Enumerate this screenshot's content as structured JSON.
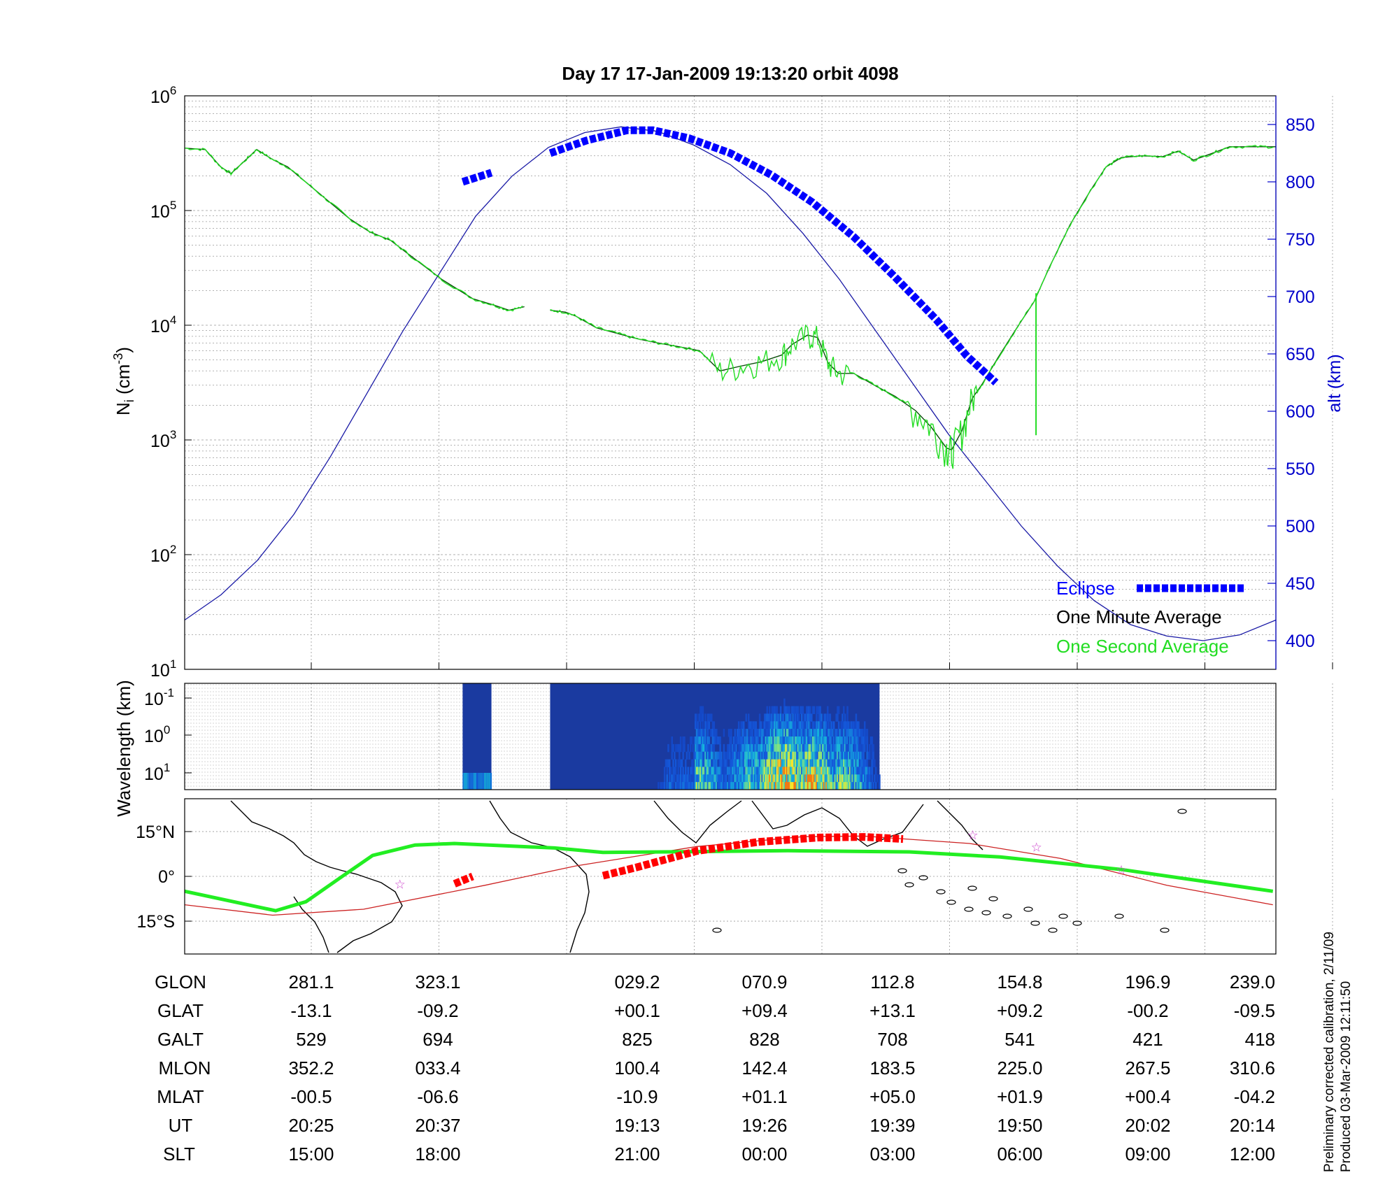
{
  "title": "Day 17  17-Jan-2009 19:13:20   orbit 4098",
  "colors": {
    "altitude": "#1a1aa6",
    "eclipse": "#0000ff",
    "minute": "#0a4d0a",
    "second": "#22dd22",
    "ground_eclipse": "#ff0000",
    "ground_track": "#cc2222",
    "ground_line": "#22ee22",
    "stars": "#cc44cc"
  },
  "chart_data": [
    {
      "type": "line",
      "title": "Day 17  17-Jan-2009 19:13:20   orbit 4098",
      "ylabel": "N_i (cm^-3)",
      "yscale": "log",
      "ylim": [
        10,
        1000000
      ],
      "yticks": [
        {
          "base": "10",
          "exp": "6"
        },
        {
          "base": "10",
          "exp": "5"
        },
        {
          "base": "10",
          "exp": "4"
        },
        {
          "base": "10",
          "exp": "3"
        },
        {
          "base": "10",
          "exp": "2"
        },
        {
          "base": "10",
          "exp": "1"
        }
      ],
      "y2label": "alt (km)",
      "y2lim": [
        375,
        875
      ],
      "y2ticks": [
        "850",
        "800",
        "750",
        "700",
        "650",
        "600",
        "550",
        "500",
        "450",
        "400"
      ],
      "x_index_range": [
        0,
        8.5
      ],
      "grid": true,
      "legend": {
        "position": "bottom-right",
        "entries": [
          "Eclipse",
          "One Minute Average",
          "One Second Average"
        ]
      },
      "series": [
        {
          "name": "One Minute Average",
          "segments": [
            [
              [
                0,
                350000
              ],
              [
                0.2,
                340000
              ],
              [
                0.35,
                240000
              ],
              [
                0.45,
                210000
              ],
              [
                0.6,
                280000
              ],
              [
                0.7,
                340000
              ],
              [
                0.85,
                280000
              ],
              [
                1.0,
                240000
              ],
              [
                1.2,
                170000
              ],
              [
                1.4,
                120000
              ],
              [
                1.6,
                85000
              ],
              [
                1.8,
                65000
              ],
              [
                2.0,
                55000
              ],
              [
                2.2,
                40000
              ],
              [
                2.5,
                25000
              ],
              [
                2.8,
                17000
              ],
              [
                3.0,
                15000
              ],
              [
                3.15,
                13500
              ],
              [
                3.3,
                14500
              ]
            ],
            [
              [
                3.55,
                13500
              ],
              [
                3.7,
                13000
              ],
              [
                3.8,
                12000
              ],
              [
                4.0,
                9500
              ],
              [
                4.2,
                8500
              ],
              [
                4.4,
                7600
              ],
              [
                4.6,
                7000
              ],
              [
                4.8,
                6500
              ],
              [
                5.0,
                6000
              ],
              [
                5.2,
                4000
              ],
              [
                5.4,
                4400
              ],
              [
                5.6,
                4800
              ],
              [
                5.8,
                5500
              ],
              [
                5.9,
                6800
              ],
              [
                6.05,
                8200
              ],
              [
                6.15,
                7800
              ],
              [
                6.25,
                4700
              ],
              [
                6.35,
                3800
              ],
              [
                6.5,
                3800
              ],
              [
                6.7,
                3000
              ],
              [
                6.9,
                2400
              ],
              [
                7.1,
                1800
              ],
              [
                7.25,
                1300
              ],
              [
                7.4,
                850
              ],
              [
                7.45,
                820
              ],
              [
                7.55,
                1200
              ],
              [
                7.65,
                2300
              ],
              [
                7.75,
                3100
              ],
              [
                7.9,
                5200
              ],
              [
                8.1,
                10000
              ],
              [
                8.25,
                16000
              ],
              [
                8.4,
                32000
              ],
              [
                8.6,
                75000
              ],
              [
                8.8,
                150000
              ],
              [
                8.95,
                240000
              ],
              [
                9.1,
                290000
              ],
              [
                9.3,
                300000
              ],
              [
                9.5,
                295000
              ],
              [
                9.65,
                330000
              ],
              [
                9.8,
                275000
              ],
              [
                10.0,
                320000
              ],
              [
                10.15,
                360000
              ],
              [
                10.4,
                360000
              ],
              [
                10.6,
                360000
              ]
            ]
          ]
        },
        {
          "name": "One Second Average",
          "spikes": [
            [
              8.27,
              1100,
              19000
            ]
          ]
        },
        {
          "name": "altitude",
          "axis": "y2",
          "values_km": [
            [
              0,
              418
            ],
            [
              0.5,
              440
            ],
            [
              1.0,
              470
            ],
            [
              1.5,
              510
            ],
            [
              2.0,
              560
            ],
            [
              2.5,
              615
            ],
            [
              3.0,
              670
            ],
            [
              3.55,
              725
            ],
            [
              4.0,
              770
            ],
            [
              4.5,
              805
            ],
            [
              5.0,
              830
            ],
            [
              5.5,
              843
            ],
            [
              6.0,
              848
            ],
            [
              6.5,
              844
            ],
            [
              7.0,
              832
            ],
            [
              7.5,
              815
            ],
            [
              8.0,
              790
            ],
            [
              8.5,
              755
            ],
            [
              9.0,
              715
            ],
            [
              9.5,
              670
            ],
            [
              10.0,
              625
            ],
            [
              10.5,
              580
            ],
            [
              11.0,
              540
            ],
            [
              11.5,
              500
            ],
            [
              12.0,
              465
            ],
            [
              12.5,
              435
            ],
            [
              13.0,
              414
            ],
            [
              13.5,
              404
            ],
            [
              14.0,
              400
            ],
            [
              14.5,
              405
            ],
            [
              15.0,
              418
            ]
          ]
        },
        {
          "name": "Eclipse",
          "axis": "y2",
          "segments": [
            [
              [
                2.7,
                800
              ],
              [
                2.98,
                808
              ]
            ],
            [
              [
                3.55,
                825
              ],
              [
                3.9,
                836
              ],
              [
                4.3,
                845
              ],
              [
                4.55,
                845
              ],
              [
                4.9,
                838
              ],
              [
                5.3,
                825
              ],
              [
                5.7,
                806
              ],
              [
                6.1,
                782
              ],
              [
                6.5,
                752
              ],
              [
                6.9,
                717
              ],
              [
                7.3,
                680
              ],
              [
                7.6,
                648
              ],
              [
                7.88,
                625
              ]
            ]
          ]
        }
      ]
    },
    {
      "type": "heatmap",
      "ylabel": "Wavelength (km)",
      "yscale": "log",
      "yticks": [
        {
          "base": "10",
          "exp": "-1"
        },
        {
          "base": "10",
          "exp": "0"
        },
        {
          "base": "10",
          "exp": "1"
        }
      ],
      "data_blocks_x_index": [
        [
          2.7,
          2.98
        ],
        [
          3.55,
          6.75
        ]
      ],
      "activity": [
        {
          "x": 4.97,
          "peak": 0.6
        },
        {
          "x": 5.5,
          "peak": 0.55
        },
        {
          "x": 5.8,
          "peak": 0.9
        },
        {
          "x": 6.1,
          "peak": 0.8
        },
        {
          "x": 6.4,
          "peak": 0.6
        }
      ]
    },
    {
      "type": "map",
      "yticks": [
        "15°N",
        "0°",
        "15°S"
      ],
      "ylim_deg": [
        -26,
        26
      ],
      "xlim_lon": [
        251,
        250
      ],
      "ground_track_green": [
        [
          251,
          -5
        ],
        [
          281,
          -11.5
        ],
        [
          291,
          -8.5
        ],
        [
          303,
          0
        ],
        [
          313,
          7
        ],
        [
          327,
          10.5
        ],
        [
          340,
          11
        ],
        [
          13,
          9.5
        ],
        [
          29,
          8
        ],
        [
          60,
          8.3
        ],
        [
          90,
          8.6
        ],
        [
          130,
          8.2
        ],
        [
          160,
          6.5
        ],
        [
          200,
          2.3
        ],
        [
          250,
          -5
        ]
      ],
      "ground_track_red": [
        [
          251,
          -9.5
        ],
        [
          280,
          -13
        ],
        [
          310,
          -11
        ],
        [
          350,
          -3
        ],
        [
          20,
          3.5
        ],
        [
          60,
          10
        ],
        [
          95,
          13.3
        ],
        [
          115,
          13.5
        ],
        [
          150,
          11
        ],
        [
          180,
          6
        ],
        [
          215,
          -3
        ],
        [
          250,
          -9.5
        ]
      ],
      "eclipse_segments": [
        [
          [
            340,
            -2.5
          ],
          [
            346,
            0
          ]
        ],
        [
          [
            29,
            0.2
          ],
          [
            40,
            3
          ],
          [
            60,
            8.5
          ],
          [
            80,
            11.5
          ],
          [
            100,
            13
          ],
          [
            115,
            13.2
          ],
          [
            128,
            12.5
          ]
        ]
      ],
      "stars": [
        [
          322,
          -2.5
        ],
        [
          151,
          14
        ],
        [
          172,
          10
        ],
        [
          200,
          2.3
        ]
      ]
    }
  ],
  "x_positions": [
    "281.1",
    "323.1",
    "",
    "029.2",
    "070.9",
    "112.8",
    "154.8",
    "196.9",
    "239.0"
  ],
  "table": {
    "rows": [
      {
        "label": "GLON",
        "values": [
          "281.1",
          "323.1",
          "029.2",
          "070.9",
          "112.8",
          "154.8",
          "196.9",
          "239.0"
        ]
      },
      {
        "label": "GLAT",
        "values": [
          "-13.1",
          "-09.2",
          "+00.1",
          "+09.4",
          "+13.1",
          "+09.2",
          "-00.2",
          "-09.5"
        ]
      },
      {
        "label": "GALT",
        "values": [
          "529",
          "694",
          "825",
          "828",
          "708",
          "541",
          "421",
          "418"
        ]
      },
      {
        "label": "MLON",
        "values": [
          "352.2",
          "033.4",
          "100.4",
          "142.4",
          "183.5",
          "225.0",
          "267.5",
          "310.6"
        ]
      },
      {
        "label": "MLAT",
        "values": [
          "-00.5",
          "-06.6",
          "-10.9",
          "+01.1",
          "+05.0",
          "+01.9",
          "+00.4",
          "-04.2"
        ]
      },
      {
        "label": "UT",
        "values": [
          "20:25",
          "20:37",
          "19:13",
          "19:26",
          "19:39",
          "19:50",
          "20:02",
          "20:14"
        ]
      },
      {
        "label": "SLT",
        "values": [
          "15:00",
          "18:00",
          "21:00",
          "00:00",
          "03:00",
          "06:00",
          "09:00",
          "12:00"
        ]
      }
    ]
  },
  "footer": {
    "line1": "Preliminary corrected calibration, 2/11/09",
    "line2": "Produced 03-Mar-2009 12:11:50"
  }
}
